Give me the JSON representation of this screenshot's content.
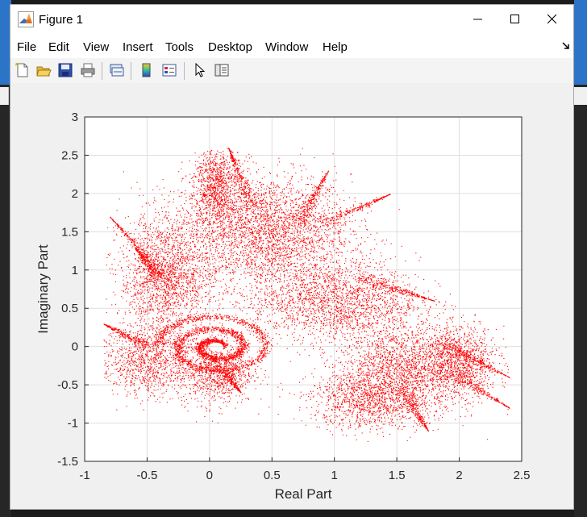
{
  "window": {
    "title": "Figure 1",
    "icon": "matlab-logo-icon",
    "controls": [
      "minimize-icon",
      "maximize-icon",
      "close-icon"
    ]
  },
  "menu": {
    "items": [
      "File",
      "Edit",
      "View",
      "Insert",
      "Tools",
      "Desktop",
      "Window",
      "Help"
    ]
  },
  "toolbar": {
    "buttons": [
      "new-figure-icon",
      "open-file-icon",
      "save-icon",
      "print-icon",
      "link-plot-icon",
      "insert-colorbar-icon",
      "insert-legend-icon",
      "edit-plot-icon",
      "property-inspector-icon"
    ]
  },
  "colors": {
    "titlebar": "#ffffff",
    "figure_background": "#f0f0f0",
    "axes_background": "#ffffff",
    "marker": "#ff0000",
    "grid": "#dfdfdf"
  },
  "chart_data": {
    "type": "scatter",
    "title": "",
    "xlabel": "Real Part",
    "ylabel": "Imaginary Part",
    "xlim": [
      -1,
      2.5
    ],
    "ylim": [
      -1.5,
      3
    ],
    "x_ticks": [
      "-1",
      "-0.5",
      "0",
      "0.5",
      "1",
      "1.5",
      "2",
      "2.5"
    ],
    "y_ticks": [
      "-1.5",
      "-1",
      "-0.5",
      "0",
      "0.5",
      "1",
      "1.5",
      "2",
      "2.5",
      "3"
    ],
    "x_tick_values": [
      -1,
      -0.5,
      0,
      0.5,
      1,
      1.5,
      2,
      2.5
    ],
    "y_tick_values": [
      -1.5,
      -1,
      -0.5,
      0,
      0.5,
      1,
      1.5,
      2,
      2.5,
      3
    ],
    "grid": true,
    "marker_color": "#ff0000",
    "series": [
      {
        "description_kind": "dense point cloud (fractal)",
        "clusters": [
          {
            "cx": 0.45,
            "cy": 1.5,
            "sx": 0.45,
            "sy": 0.5,
            "weight": 3
          },
          {
            "cx": -0.35,
            "cy": 0.9,
            "sx": 0.25,
            "sy": 0.55,
            "weight": 2
          },
          {
            "cx": 0.05,
            "cy": 2.1,
            "sx": 0.12,
            "sy": 0.35,
            "weight": 1
          },
          {
            "cx": 1.0,
            "cy": 0.6,
            "sx": 0.45,
            "sy": 0.35,
            "weight": 2
          },
          {
            "cx": 1.55,
            "cy": -0.3,
            "sx": 0.35,
            "sy": 0.4,
            "weight": 2
          },
          {
            "cx": 1.25,
            "cy": -0.7,
            "sx": 0.3,
            "sy": 0.25,
            "weight": 1
          },
          {
            "cx": -0.5,
            "cy": -0.2,
            "sx": 0.25,
            "sy": 0.3,
            "weight": 1
          },
          {
            "cx": 0.05,
            "cy": -0.3,
            "sx": 0.2,
            "sy": 0.3,
            "weight": 1
          },
          {
            "cx": 2.0,
            "cy": -0.2,
            "sx": 0.2,
            "sy": 0.3,
            "weight": 1
          }
        ],
        "spiral_center": [
          0.05,
          0.0
        ],
        "extent": {
          "x_min": -0.85,
          "x_max": 2.4,
          "y_min": -1.25,
          "y_max": 2.6
        }
      }
    ]
  }
}
